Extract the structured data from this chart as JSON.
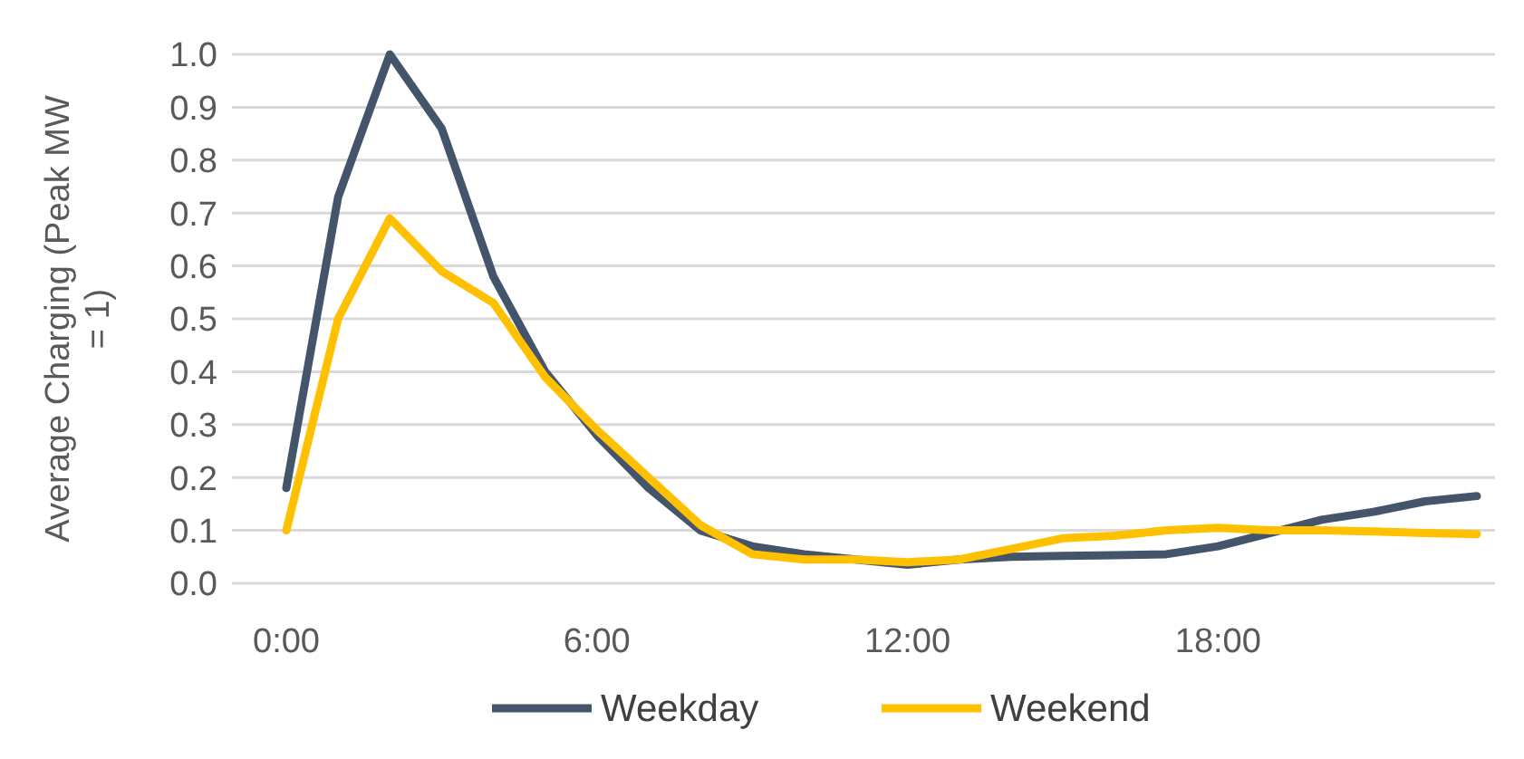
{
  "chart_data": {
    "type": "line",
    "ylabel": "Average Charging (Peak MW = 1)",
    "categories": [
      "0:00",
      null,
      null,
      null,
      null,
      null,
      "6:00",
      null,
      null,
      null,
      null,
      null,
      "12:00",
      null,
      null,
      null,
      null,
      null,
      "18:00",
      null,
      null,
      null,
      null,
      null
    ],
    "series": [
      {
        "name": "Weekday",
        "color": "#44546a",
        "values": [
          0.18,
          0.73,
          1.0,
          0.86,
          0.58,
          0.4,
          0.28,
          0.18,
          0.1,
          0.07,
          0.055,
          0.045,
          0.035,
          0.045,
          0.05,
          0.052,
          0.053,
          0.055,
          0.07,
          0.095,
          0.12,
          0.135,
          0.155,
          0.165
        ]
      },
      {
        "name": "Weekend",
        "color": "#ffc000",
        "values": [
          0.1,
          0.5,
          0.69,
          0.59,
          0.53,
          0.39,
          0.29,
          0.2,
          0.11,
          0.055,
          0.045,
          0.045,
          0.04,
          0.045,
          0.065,
          0.085,
          0.09,
          0.1,
          0.105,
          0.1,
          0.1,
          0.098,
          0.095,
          0.093
        ]
      }
    ],
    "ylim": [
      0,
      1
    ],
    "yticks": [
      {
        "value": 0,
        "label": "0.0"
      },
      {
        "value": 0.1,
        "label": "0.1"
      },
      {
        "value": 0.2,
        "label": "0.2"
      },
      {
        "value": 0.3,
        "label": "0.3"
      },
      {
        "value": 0.4,
        "label": "0.4"
      },
      {
        "value": 0.5,
        "label": "0.5"
      },
      {
        "value": 0.6,
        "label": "0.6"
      },
      {
        "value": 0.7,
        "label": "0.7"
      },
      {
        "value": 0.8,
        "label": "0.8"
      },
      {
        "value": 0.9,
        "label": "0.9"
      },
      {
        "value": 1,
        "label": "1.0"
      }
    ],
    "grid": "y",
    "legend": "bottom",
    "marker": "none",
    "line_style": "solid"
  }
}
